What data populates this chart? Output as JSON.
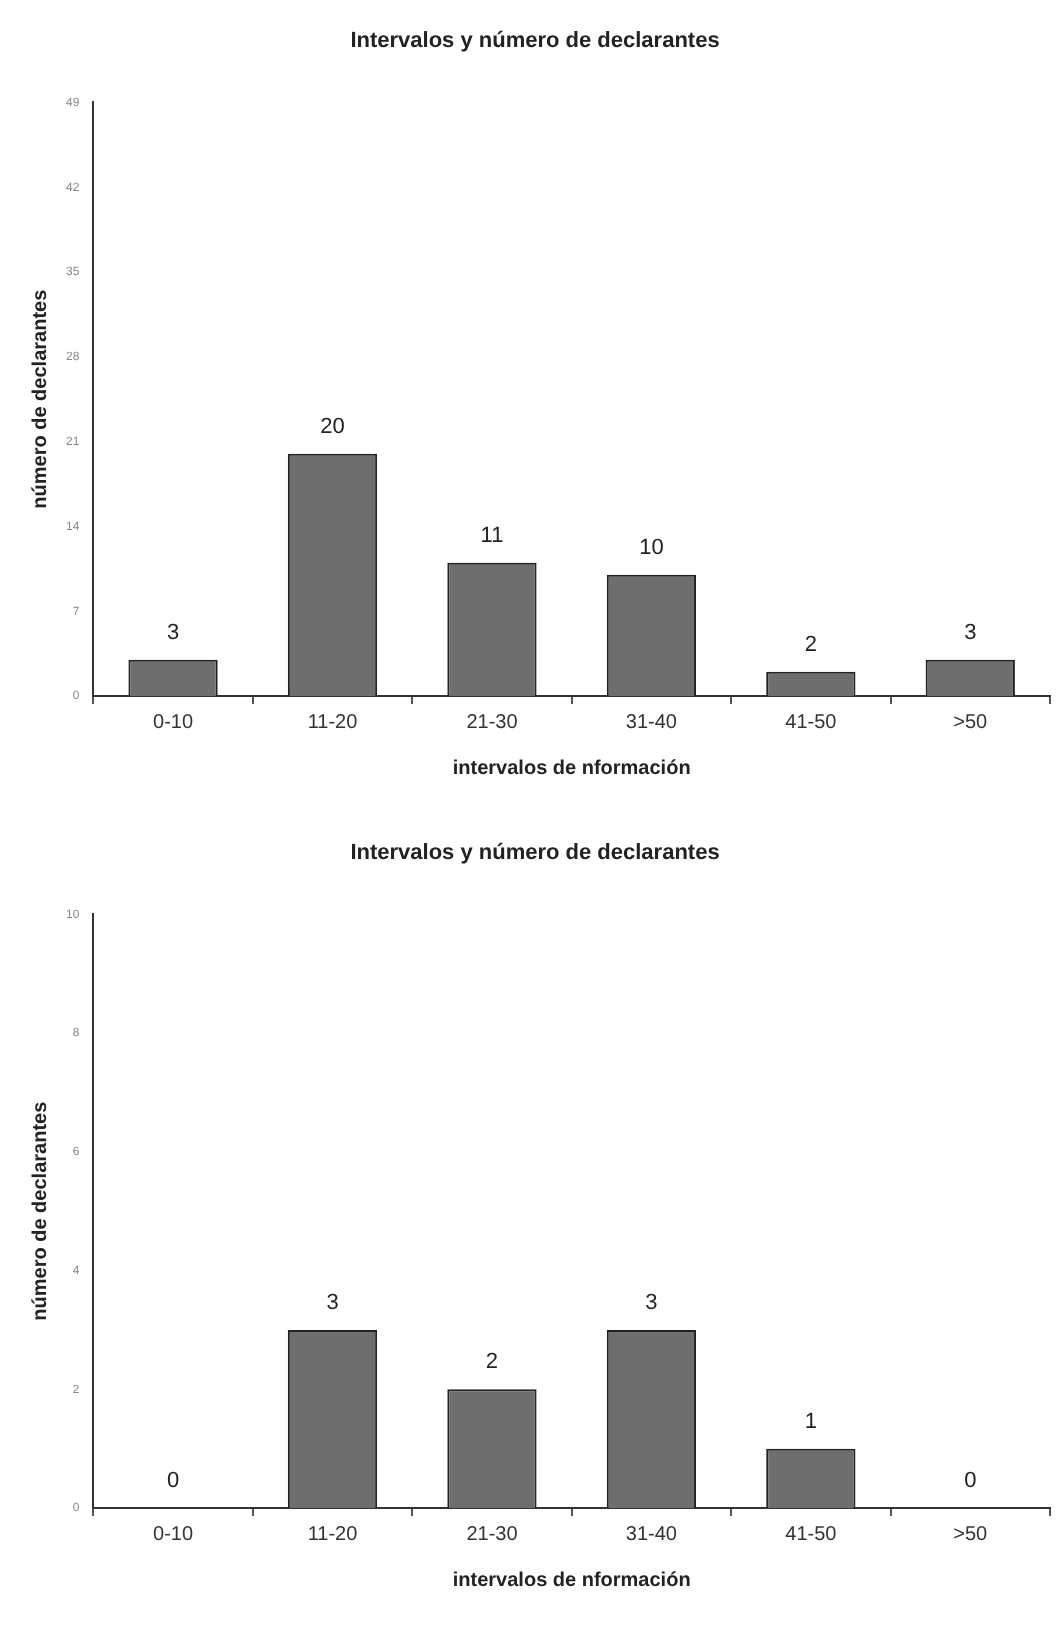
{
  "chart_data": [
    {
      "type": "bar",
      "title": "Intervalos y número de declarantes",
      "xlabel": "intervalos de nformación",
      "ylabel": "número de declarantes",
      "categories": [
        "0-10",
        "11-20",
        "21-30",
        "31-40",
        "41-50",
        ">50"
      ],
      "values": [
        3,
        20,
        11,
        10,
        2,
        3
      ],
      "color": "#6e6e6e",
      "ylim": [
        0,
        49
      ],
      "yticks": [
        0,
        7,
        14,
        21,
        28,
        35,
        42,
        49
      ],
      "data_labels": true,
      "grid": false,
      "legend": false
    },
    {
      "type": "bar",
      "title": "Intervalos y número de declarantes",
      "xlabel": "intervalos de nformación",
      "ylabel": "número de declarantes",
      "categories": [
        "0-10",
        "11-20",
        "21-30",
        "31-40",
        "41-50",
        ">50"
      ],
      "values": [
        0,
        3,
        2,
        3,
        1,
        0
      ],
      "color": "#6e6e6e",
      "ylim": [
        0,
        10
      ],
      "yticks": [
        0,
        2,
        4,
        6,
        8,
        10
      ],
      "data_labels": true,
      "grid": false,
      "legend": false
    }
  ]
}
